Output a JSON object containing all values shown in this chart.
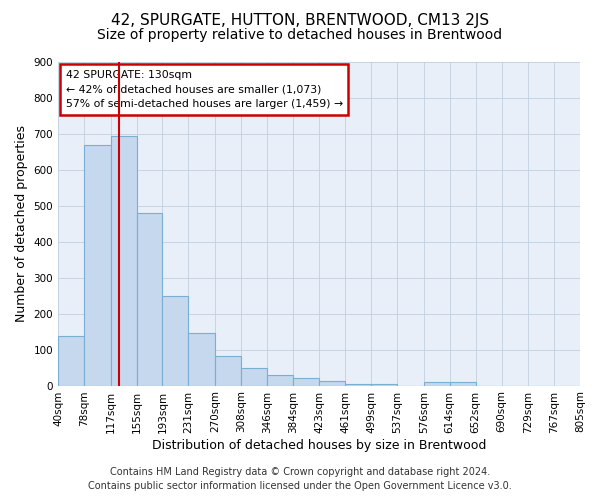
{
  "title": "42, SPURGATE, HUTTON, BRENTWOOD, CM13 2JS",
  "subtitle": "Size of property relative to detached houses in Brentwood",
  "xlabel": "Distribution of detached houses by size in Brentwood",
  "ylabel": "Number of detached properties",
  "bar_color": "#c5d8ed",
  "bar_edge_color": "#7aafd4",
  "bar_heights": [
    137,
    667,
    693,
    480,
    248,
    147,
    83,
    50,
    28,
    20,
    12,
    5,
    5,
    0,
    10,
    10,
    0,
    0,
    0,
    0
  ],
  "bin_edges": [
    40,
    78,
    117,
    155,
    193,
    231,
    270,
    308,
    346,
    384,
    423,
    461,
    499,
    537,
    576,
    614,
    652,
    690,
    729,
    767,
    805
  ],
  "x_tick_labels": [
    "40sqm",
    "78sqm",
    "117sqm",
    "155sqm",
    "193sqm",
    "231sqm",
    "270sqm",
    "308sqm",
    "346sqm",
    "384sqm",
    "423sqm",
    "461sqm",
    "499sqm",
    "537sqm",
    "576sqm",
    "614sqm",
    "652sqm",
    "690sqm",
    "729sqm",
    "767sqm",
    "805sqm"
  ],
  "ylim": [
    0,
    900
  ],
  "yticks": [
    0,
    100,
    200,
    300,
    400,
    500,
    600,
    700,
    800,
    900
  ],
  "red_line_x": 130,
  "annotation_title": "42 SPURGATE: 130sqm",
  "annotation_line1": "← 42% of detached houses are smaller (1,073)",
  "annotation_line2": "57% of semi-detached houses are larger (1,459) →",
  "annotation_box_color": "#ffffff",
  "annotation_box_edge_color": "#cc0000",
  "footer_line1": "Contains HM Land Registry data © Crown copyright and database right 2024.",
  "footer_line2": "Contains public sector information licensed under the Open Government Licence v3.0.",
  "background_color": "#ffffff",
  "plot_bg_color": "#e8eff8",
  "grid_color": "#c0cfe0",
  "title_fontsize": 11,
  "subtitle_fontsize": 10,
  "axis_label_fontsize": 9,
  "tick_fontsize": 7.5,
  "footer_fontsize": 7
}
